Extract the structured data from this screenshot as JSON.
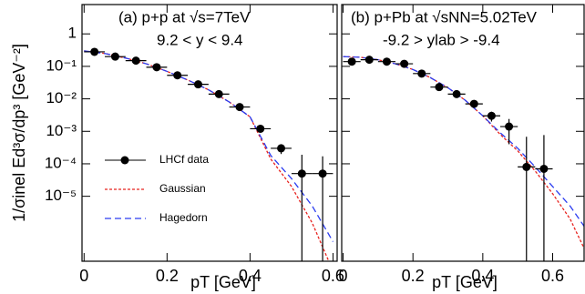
{
  "chart_data": [
    {
      "type": "scatter",
      "title": "(a) p+p at √s=7TeV",
      "subtitle": "9.2 < y < 9.4",
      "x_label": "pT [GeV]",
      "y_label": "1/σinel Ed³σ/dp³ [GeV⁻²]",
      "log_y": true,
      "xlim": [
        -0.005,
        0.61
      ],
      "ylim": [
        1e-07,
        8
      ],
      "xticks": [
        0,
        0.2,
        0.4,
        0.6
      ],
      "yticks": [
        {
          "value": 1,
          "label": "1"
        },
        {
          "value": 0.1,
          "label": "10⁻¹"
        },
        {
          "value": 0.01,
          "label": "10⁻²"
        },
        {
          "value": 0.001,
          "label": "10⁻³"
        },
        {
          "value": 0.0001,
          "label": "10⁻⁴"
        },
        {
          "value": 1e-05,
          "label": "10⁻⁵"
        }
      ],
      "legend": "lower left",
      "points": {
        "name": "LHCf data",
        "color": "#000000",
        "x": [
          0.025,
          0.075,
          0.125,
          0.175,
          0.225,
          0.275,
          0.325,
          0.375,
          0.425,
          0.475,
          0.525,
          0.575
        ],
        "values": [
          0.28,
          0.2,
          0.15,
          0.094,
          0.053,
          0.028,
          0.014,
          0.0056,
          0.0012,
          0.0003,
          5e-05,
          5e-05
        ],
        "xerr": [
          0.025,
          0.025,
          0.025,
          0.025,
          0.025,
          0.025,
          0.025,
          0.025,
          0.025,
          0.025,
          0.025,
          0.025
        ],
        "yerr": [
          0.02,
          0.015,
          0.01,
          0.007,
          0.004,
          0.002,
          0.001,
          0.0005,
          0.0002,
          0.0001,
          0.00014,
          0.00012
        ]
      },
      "curve_x": [
        0,
        0.05,
        0.1,
        0.15,
        0.2,
        0.25,
        0.3,
        0.35,
        0.4,
        0.45,
        0.5,
        0.55,
        0.6
      ],
      "series": [
        {
          "name": "Gaussian",
          "color": "#e8231f",
          "dash": "3,2",
          "values": [
            0.3,
            0.25,
            0.18,
            0.12,
            0.07,
            0.038,
            0.019,
            0.008,
            0.0028,
            0.00014,
            2e-05,
            1.5e-06,
            5e-08
          ]
        },
        {
          "name": "Hagedorn",
          "color": "#2b3cf0",
          "dash": "7,4",
          "values": [
            0.3,
            0.25,
            0.18,
            0.12,
            0.07,
            0.038,
            0.019,
            0.008,
            0.0028,
            0.00018,
            3.5e-05,
            5e-06,
            4e-07
          ]
        }
      ]
    },
    {
      "type": "scatter",
      "title": "(b) p+Pb at √sNN=5.02TeV",
      "subtitle": "-9.2 > ylab > -9.4",
      "x_label": "pT [GeV]",
      "log_y": true,
      "xlim": [
        -0.004,
        0.69
      ],
      "ylim": [
        1e-07,
        8
      ],
      "xticks": [
        0,
        0.2,
        0.4,
        0.6
      ],
      "yticks": [
        1,
        0.1,
        0.01,
        0.001,
        0.0001,
        1e-05
      ],
      "points": {
        "color": "#000000",
        "x": [
          0.025,
          0.075,
          0.125,
          0.175,
          0.225,
          0.275,
          0.325,
          0.375,
          0.425,
          0.475,
          0.525,
          0.575
        ],
        "values": [
          0.14,
          0.16,
          0.14,
          0.12,
          0.06,
          0.023,
          0.014,
          0.007,
          0.003,
          0.0014,
          8e-05,
          7e-05
        ],
        "xerr": [
          0.025,
          0.025,
          0.025,
          0.025,
          0.025,
          0.025,
          0.025,
          0.025,
          0.025,
          0.025,
          0.025,
          0.025
        ],
        "yerr": [
          0.03,
          0.03,
          0.03,
          0.02,
          0.01,
          0.004,
          0.002,
          0.001,
          0.001,
          0.001,
          0.0006,
          0.0007
        ]
      },
      "curve_x": [
        0,
        0.05,
        0.1,
        0.15,
        0.2,
        0.25,
        0.3,
        0.35,
        0.4,
        0.45,
        0.5,
        0.55,
        0.6,
        0.65,
        0.69
      ],
      "series": [
        {
          "color": "#e8231f",
          "dash": "3,2",
          "values": [
            0.2,
            0.19,
            0.16,
            0.12,
            0.08,
            0.045,
            0.022,
            0.009,
            0.003,
            0.0008,
            0.00025,
            6e-05,
            1.2e-05,
            2e-06,
            2.5e-07
          ]
        },
        {
          "color": "#2b3cf0",
          "dash": "7,4",
          "values": [
            0.2,
            0.19,
            0.16,
            0.12,
            0.08,
            0.045,
            0.022,
            0.009,
            0.003,
            0.0009,
            0.0003,
            8e-05,
            2e-05,
            5e-06,
            1.2e-06
          ]
        }
      ]
    }
  ]
}
